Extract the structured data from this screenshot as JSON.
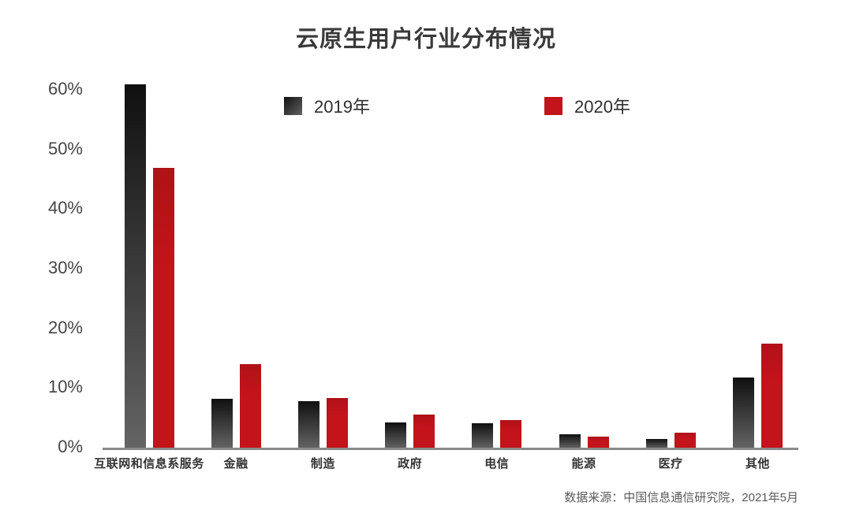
{
  "chart_data": {
    "type": "bar",
    "title": "云原生用户行业分布情况",
    "categories": [
      "互联网和信息系服务",
      "金融",
      "制造",
      "政府",
      "电信",
      "能源",
      "医疗",
      "其他"
    ],
    "series": [
      {
        "name": "2019年",
        "color_top": "#101010",
        "color_bottom": "#646464",
        "values": [
          61,
          8.3,
          7.9,
          4.3,
          4.2,
          2.4,
          1.6,
          11.9
        ]
      },
      {
        "name": "2020年",
        "color": "#c3131b",
        "color_top": "#b01118",
        "values": [
          47,
          14.1,
          8.4,
          5.7,
          4.7,
          2.0,
          2.6,
          17.6
        ]
      }
    ],
    "ylim": [
      0,
      60
    ],
    "yticks": [
      "60%",
      "50%",
      "40%",
      "30%",
      "20%",
      "10%",
      "0%"
    ],
    "ytick_values": [
      60,
      50,
      40,
      30,
      20,
      10,
      0
    ],
    "xlabel": "",
    "ylabel": "",
    "grid": false,
    "legend_position": "top",
    "source_note": "数据来源：中国信息通信研究院，2021年5月"
  },
  "colors": {
    "background": "#ffffff",
    "axis_line": "#8a8a8a",
    "title_text": "#3a3a3a",
    "tick_text": "#454545",
    "accent_red": "#c3131b"
  }
}
